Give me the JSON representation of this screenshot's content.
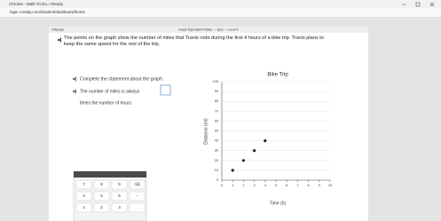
{
  "window": {
    "title": "Chrome - Math To Do, i-Ready",
    "address": "login.i-ready.com/student/dashboard/home"
  },
  "app": {
    "brand": "i-Ready",
    "lesson": "Graph Equivalent Ratios — Quiz — Level F"
  },
  "question": "The points on the graph show the number of miles that Travis rode during the first 4 hours of a bike trip. Travis plans to keep the same speed for the rest of the trip.",
  "instruction": "Complete the statement about the graph.",
  "statement": {
    "before": "The number of miles is always",
    "after": "times the number of hours."
  },
  "keypad": {
    "rows": [
      [
        "7",
        "8",
        "9",
        "⌫"
      ],
      [
        "4",
        "5",
        "6",
        "−"
      ],
      [
        "1",
        "2",
        "3",
        "."
      ]
    ]
  },
  "chart_data": {
    "type": "scatter",
    "title": "Bike Trip",
    "x_label": "Time (h)",
    "y_label": "Distance (mi)",
    "series": [
      {
        "color": "#222222",
        "x": [
          1,
          2,
          3,
          4
        ],
        "values": [
          10,
          20,
          30,
          40
        ]
      }
    ],
    "xlim": [
      0,
      10
    ],
    "xticks": [
      0,
      1,
      2,
      3,
      4,
      5,
      6,
      7,
      8,
      9,
      10
    ],
    "ylim": [
      0,
      100
    ],
    "yticks": [
      0,
      10,
      20,
      30,
      40,
      50,
      60,
      70,
      80,
      90,
      100
    ],
    "grid": true
  }
}
